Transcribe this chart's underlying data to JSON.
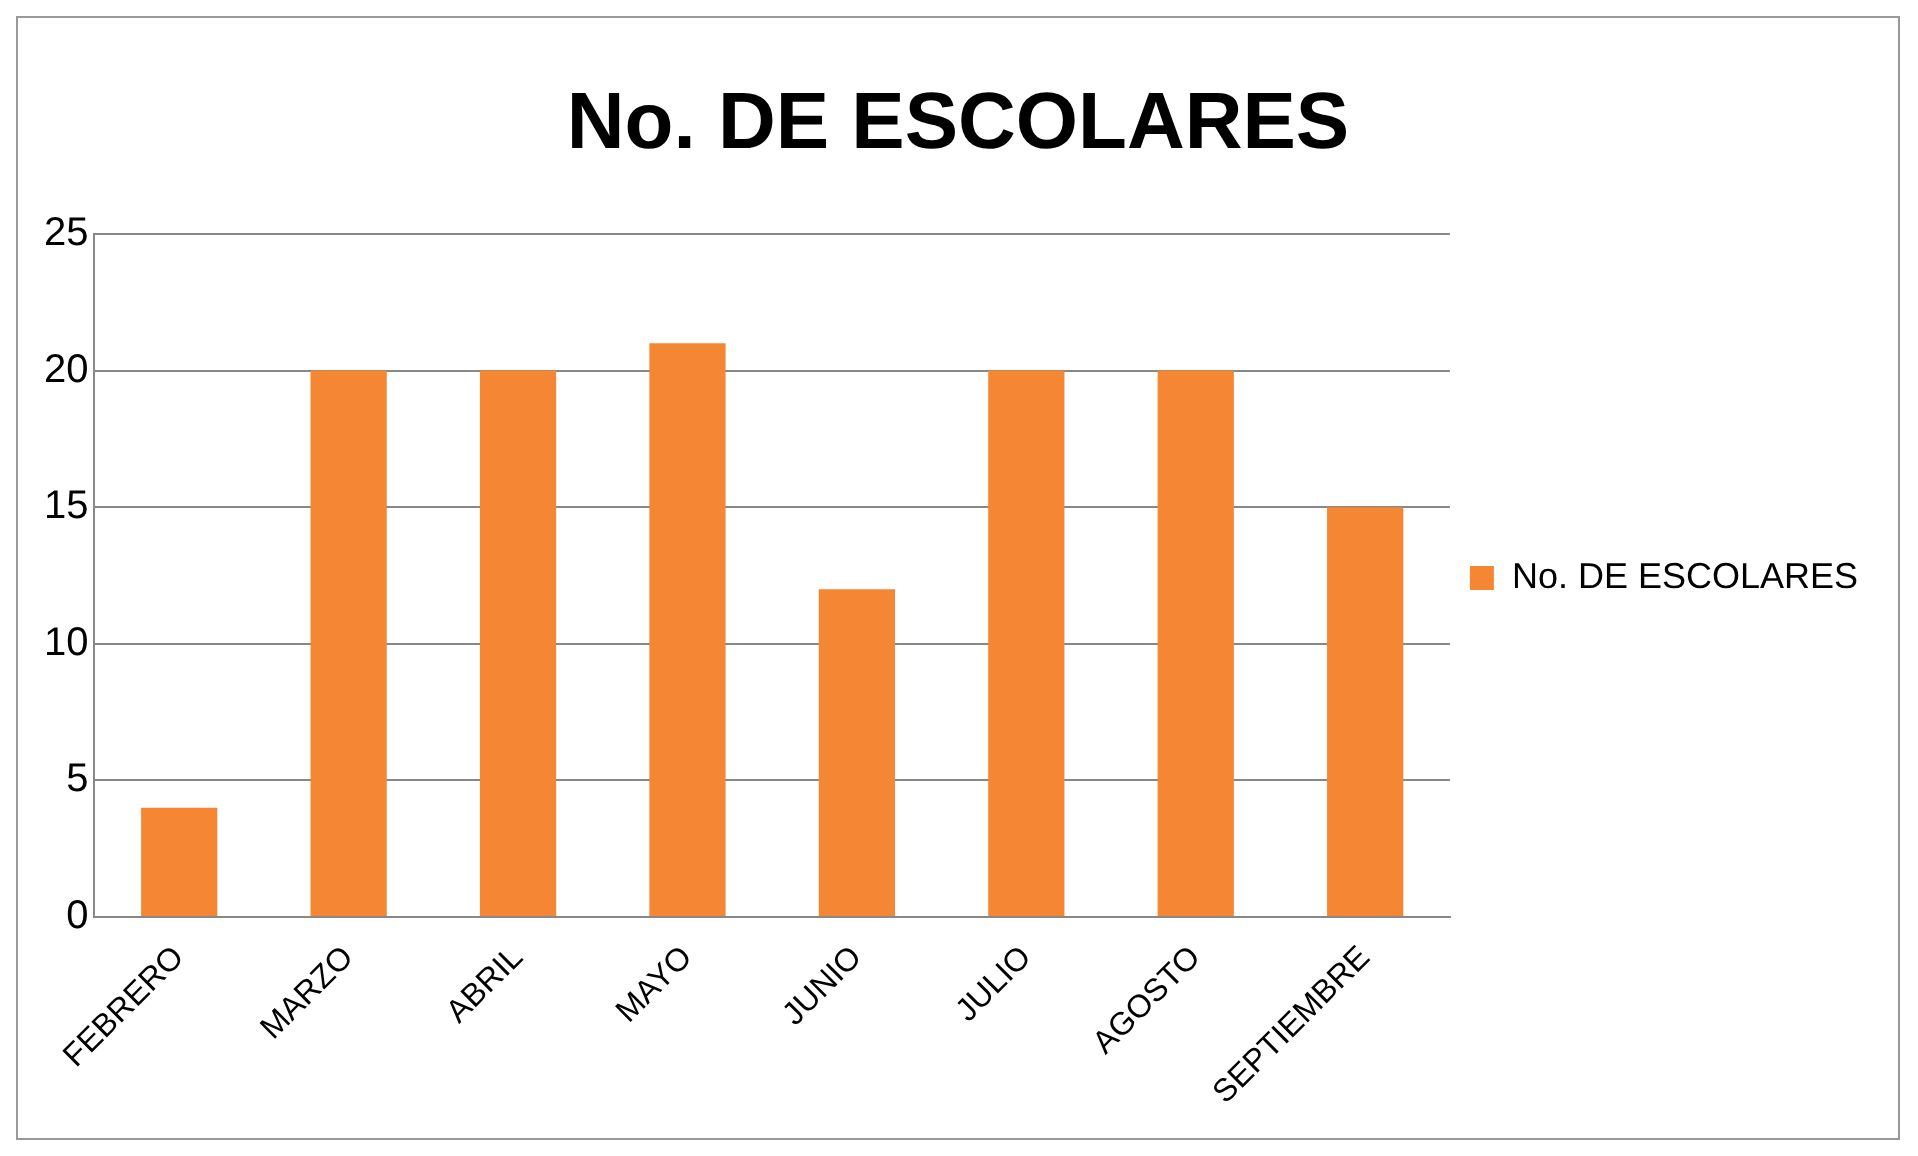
{
  "chart_data": {
    "type": "bar",
    "title": "No. DE ESCOLARES",
    "categories": [
      "FEBRERO",
      "MARZO",
      "ABRIL",
      "MAYO",
      "JUNIO",
      "JULIO",
      "AGOSTO",
      "SEPTIEMBRE"
    ],
    "series": [
      {
        "name": "No. DE ESCOLARES",
        "color": "#f58634",
        "values": [
          4,
          20,
          20,
          21,
          12,
          20,
          20,
          15
        ]
      }
    ],
    "ylim": [
      0,
      25
    ],
    "yticks": [
      0,
      5,
      10,
      15,
      20,
      25
    ],
    "grid": "y",
    "legend": "right"
  }
}
